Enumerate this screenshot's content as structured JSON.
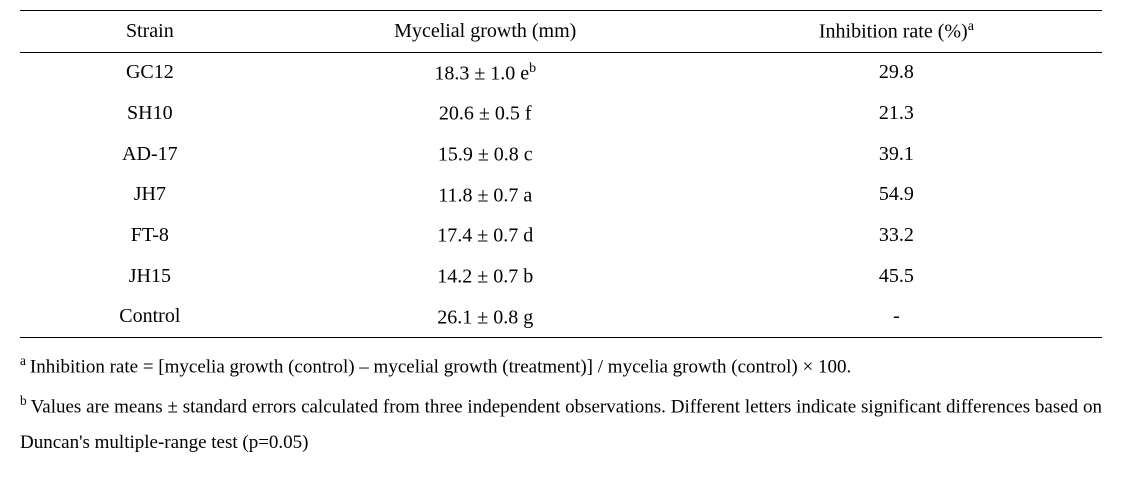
{
  "table": {
    "columns": [
      {
        "label": "Strain",
        "key": "strain"
      },
      {
        "label": "Mycelial growth (mm)",
        "key": "growth"
      },
      {
        "label_prefix": "Inhibition rate (%)",
        "sup": "a",
        "key": "inhibition"
      }
    ],
    "rows": [
      {
        "strain": "GC12",
        "growth_prefix": "18.3 ± 1.0 e",
        "growth_sup": "b",
        "inhibition": "29.8"
      },
      {
        "strain": "SH10",
        "growth_prefix": "20.6 ± 0.5 f",
        "growth_sup": "",
        "inhibition": "21.3"
      },
      {
        "strain": "AD-17",
        "growth_prefix": "15.9 ± 0.8 c",
        "growth_sup": "",
        "inhibition": "39.1"
      },
      {
        "strain": "JH7",
        "growth_prefix": "11.8 ± 0.7 a",
        "growth_sup": "",
        "inhibition": "54.9"
      },
      {
        "strain": "FT-8",
        "growth_prefix": "17.4 ± 0.7 d",
        "growth_sup": "",
        "inhibition": "33.2"
      },
      {
        "strain": "JH15",
        "growth_prefix": "14.2 ± 0.7 b",
        "growth_sup": "",
        "inhibition": "45.5"
      },
      {
        "strain": "Control",
        "growth_prefix": "26.1 ± 0.8 g",
        "growth_sup": "",
        "inhibition": "-"
      }
    ],
    "border_color": "#000000",
    "background_color": "#ffffff",
    "text_color": "#000000",
    "header_fontsize": 20,
    "cell_fontsize": 20
  },
  "footnotes": {
    "a": {
      "sup": "a",
      "text": "Inhibition rate = [mycelia growth (control) – mycelial growth (treatment)] / mycelia growth (control) × 100."
    },
    "b": {
      "sup": "b",
      "text": "Values are means ± standard errors calculated from three independent observations. Different letters indicate significant differences based on Duncan's multiple-range test (p=0.05)"
    },
    "fontsize": 19,
    "text_color": "#000000"
  }
}
